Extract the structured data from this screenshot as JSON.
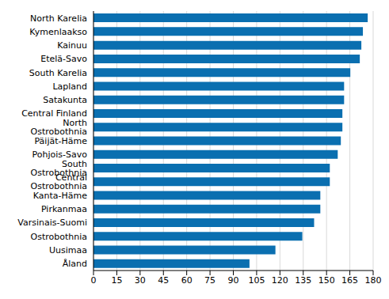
{
  "chart_data": {
    "type": "bar",
    "orientation": "horizontal",
    "categories": [
      "North Karelia",
      "Kymenlaakso",
      "Kainuu",
      "Etelä-Savo",
      "South Karelia",
      "Lapland",
      "Satakunta",
      "Central Finland",
      "North Ostrobothnia",
      "Päijät-Häme",
      "Pohjois-Savo",
      "South Ostrobothnia",
      "Central Ostrobothnia",
      "Kanta-Häme",
      "Pirkanmaa",
      "Varsinais-Suomi",
      "Ostrobothnia",
      "Uusimaa",
      "Åland"
    ],
    "values": [
      176.5,
      173.4,
      172.4,
      171.4,
      165.3,
      161.3,
      161.3,
      160.2,
      160.2,
      159.2,
      157.2,
      152.1,
      152.1,
      146,
      146,
      142,
      134.4,
      117.1,
      100.4
    ],
    "color": "#0a6fb0",
    "xlim": [
      0,
      180
    ],
    "xticks": [
      0,
      15,
      30,
      45,
      60,
      75,
      90,
      105,
      120,
      135,
      150,
      165,
      180
    ],
    "grid": true
  }
}
